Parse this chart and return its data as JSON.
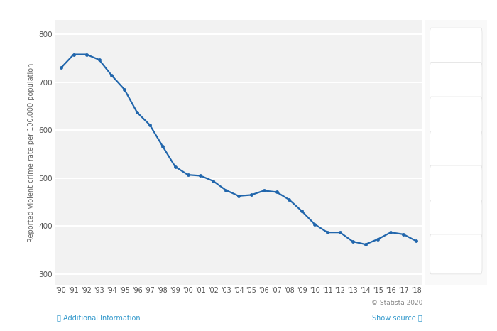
{
  "years": [
    "'90",
    "'91",
    "'92",
    "'93",
    "'94",
    "'95",
    "'96",
    "'97",
    "'98",
    "'99",
    "'00",
    "'01",
    "'02",
    "'03",
    "'04",
    "'05",
    "'06",
    "'07",
    "'08",
    "'09",
    "'10",
    "'11",
    "'12",
    "'13",
    "'14",
    "'15",
    "'16",
    "'17",
    "'18"
  ],
  "values": [
    730,
    758,
    758,
    747,
    714,
    685,
    637,
    611,
    567,
    524,
    507,
    505,
    494,
    475,
    463,
    465,
    474,
    471,
    455,
    431,
    404,
    387,
    387,
    368,
    362,
    373,
    387,
    383,
    369
  ],
  "line_color": "#2166ac",
  "marker_color": "#2166ac",
  "fig_bg_color": "#ffffff",
  "plot_bg_color": "#f2f2f2",
  "right_panel_color": "#f9f9f9",
  "ylabel": "Reported violent crime rate per 100,000 population",
  "yticks": [
    300,
    400,
    500,
    600,
    700,
    800
  ],
  "ylim": [
    278,
    830
  ],
  "grid_color": "#ffffff",
  "copyright_text": "© Statista 2020",
  "additional_info_text": "ⓘ Additional Information",
  "show_source_text": "Show source ⓘ",
  "line_width": 1.6,
  "marker_size": 3.5,
  "tick_label_color": "#555555",
  "ylabel_color": "#666666",
  "footer_color": "#888888",
  "link_color": "#3399cc"
}
